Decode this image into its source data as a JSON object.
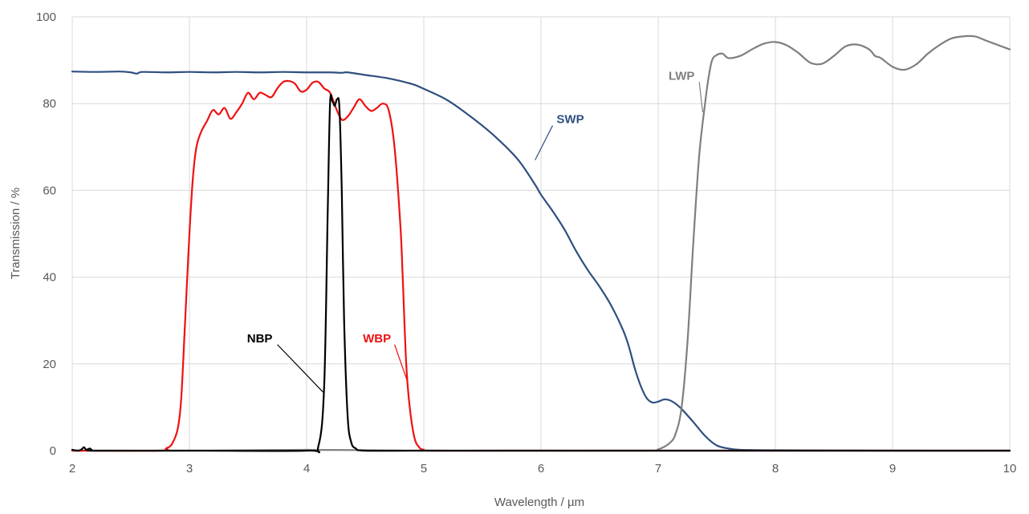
{
  "chart_data": {
    "type": "line",
    "title": "",
    "xlabel": "Wavelength / µm",
    "ylabel": "Transmission / %",
    "xlim": [
      2,
      10
    ],
    "ylim": [
      0,
      100
    ],
    "xticks": [
      "2",
      "3",
      "4",
      "5",
      "6",
      "7",
      "8",
      "9",
      "10"
    ],
    "yticks": [
      "0",
      "20",
      "40",
      "60",
      "80",
      "100"
    ],
    "grid": true,
    "legend": "none",
    "series": [
      {
        "name": "SWP",
        "color": "#2f4f80",
        "x": [
          2.0,
          2.2,
          2.4,
          2.5,
          2.55,
          2.6,
          2.8,
          3.0,
          3.2,
          3.4,
          3.6,
          3.8,
          4.0,
          4.2,
          4.3,
          4.35,
          4.5,
          4.7,
          4.9,
          5.0,
          5.2,
          5.4,
          5.6,
          5.8,
          5.95,
          6.0,
          6.1,
          6.2,
          6.3,
          6.4,
          6.5,
          6.6,
          6.7,
          6.75,
          6.8,
          6.85,
          6.9,
          6.95,
          7.0,
          7.05,
          7.1,
          7.15,
          7.2,
          7.3,
          7.4,
          7.5,
          7.6,
          7.7,
          8.0,
          9.0,
          10.0
        ],
        "y": [
          87.4,
          87.3,
          87.4,
          87.2,
          86.9,
          87.3,
          87.2,
          87.3,
          87.2,
          87.3,
          87.2,
          87.3,
          87.2,
          87.2,
          87.1,
          87.2,
          86.6,
          85.8,
          84.5,
          83.4,
          80.8,
          77.0,
          72.6,
          67.2,
          61.3,
          59.0,
          55.2,
          51.0,
          46.0,
          41.6,
          37.8,
          33.4,
          27.8,
          24.0,
          19.0,
          15.0,
          12.2,
          11.1,
          11.3,
          11.8,
          11.6,
          10.8,
          9.6,
          6.6,
          3.4,
          1.2,
          0.5,
          0.2,
          0.1,
          0.0,
          0.0
        ]
      },
      {
        "name": "LWP",
        "color": "#7f7f7f",
        "x": [
          2.0,
          3.0,
          4.0,
          5.0,
          6.0,
          6.9,
          7.0,
          7.1,
          7.15,
          7.2,
          7.25,
          7.3,
          7.35,
          7.4,
          7.43,
          7.46,
          7.5,
          7.55,
          7.6,
          7.7,
          7.8,
          7.9,
          8.0,
          8.1,
          8.2,
          8.3,
          8.4,
          8.5,
          8.6,
          8.7,
          8.8,
          8.85,
          8.9,
          9.0,
          9.1,
          9.2,
          9.3,
          9.4,
          9.5,
          9.6,
          9.7,
          9.8,
          9.9,
          10.0
        ],
        "y": [
          0.0,
          0.0,
          0.2,
          0.0,
          0.0,
          0.0,
          0.3,
          1.8,
          4.0,
          10.0,
          25.0,
          48.0,
          68.0,
          80.0,
          86.0,
          90.0,
          91.2,
          91.5,
          90.5,
          91.0,
          92.5,
          93.8,
          94.2,
          93.4,
          91.6,
          89.4,
          89.2,
          91.0,
          93.2,
          93.6,
          92.5,
          91.0,
          90.5,
          88.5,
          87.8,
          89.0,
          91.5,
          93.5,
          95.0,
          95.5,
          95.5,
          94.5,
          93.5,
          92.5
        ]
      },
      {
        "name": "WBP",
        "color": "#ee1111",
        "x": [
          2.0,
          2.75,
          2.8,
          2.85,
          2.9,
          2.93,
          2.96,
          3.0,
          3.03,
          3.06,
          3.1,
          3.15,
          3.2,
          3.25,
          3.3,
          3.35,
          3.4,
          3.45,
          3.5,
          3.55,
          3.6,
          3.65,
          3.7,
          3.75,
          3.8,
          3.85,
          3.9,
          3.95,
          4.0,
          4.05,
          4.1,
          4.15,
          4.2,
          4.25,
          4.3,
          4.35,
          4.4,
          4.45,
          4.5,
          4.55,
          4.6,
          4.65,
          4.7,
          4.75,
          4.8,
          4.82,
          4.85,
          4.88,
          4.92,
          4.96,
          5.0,
          5.1,
          6.0,
          10.0
        ],
        "y": [
          0.0,
          0.0,
          0.5,
          1.5,
          5.0,
          12.0,
          28.0,
          50.0,
          63.0,
          70.0,
          73.5,
          76.0,
          78.5,
          77.5,
          79.0,
          76.5,
          78.0,
          80.0,
          82.5,
          81.0,
          82.5,
          82.0,
          81.5,
          83.5,
          85.0,
          85.2,
          84.6,
          82.8,
          83.2,
          84.8,
          85.0,
          83.5,
          82.5,
          79.0,
          76.3,
          77.0,
          79.0,
          81.0,
          79.5,
          78.3,
          79.0,
          80.0,
          78.5,
          70.0,
          52.0,
          40.0,
          20.0,
          10.0,
          3.0,
          0.8,
          0.2,
          0.0,
          0.0,
          0.0
        ]
      },
      {
        "name": "NBP",
        "color": "#000000",
        "x": [
          2.0,
          2.05,
          2.08,
          2.1,
          2.12,
          2.15,
          2.17,
          2.2,
          3.0,
          4.0,
          4.1,
          4.15,
          4.18,
          4.2,
          4.22,
          4.24,
          4.26,
          4.28,
          4.3,
          4.32,
          4.35,
          4.38,
          4.42,
          4.5,
          5.0,
          6.0,
          7.0,
          8.0,
          9.0,
          10.0
        ],
        "y": [
          0.2,
          0.0,
          0.3,
          0.8,
          0.2,
          0.5,
          0.1,
          0.0,
          0.0,
          0.0,
          1.0,
          15.0,
          55.0,
          80.0,
          80.5,
          79.5,
          81.0,
          79.0,
          60.0,
          30.0,
          8.0,
          2.0,
          0.5,
          0.0,
          0.0,
          0.0,
          0.0,
          0.0,
          0.0,
          0.0
        ]
      }
    ],
    "annotations": [
      {
        "text": "SWP",
        "color": "#2f4f80",
        "label_at": [
          6.25,
          75.5
        ],
        "points_to": [
          5.95,
          67.0
        ]
      },
      {
        "text": "LWP",
        "color": "#7f7f7f",
        "label_at": [
          7.2,
          85.5
        ],
        "points_to": [
          7.38,
          78.0
        ]
      },
      {
        "text": "WBP",
        "color": "#ee1111",
        "label_at": [
          4.6,
          25.0
        ],
        "points_to": [
          4.86,
          16.0
        ]
      },
      {
        "text": "NBP",
        "color": "#000000",
        "label_at": [
          3.6,
          25.0
        ],
        "points_to": [
          4.14,
          13.5
        ]
      }
    ]
  }
}
